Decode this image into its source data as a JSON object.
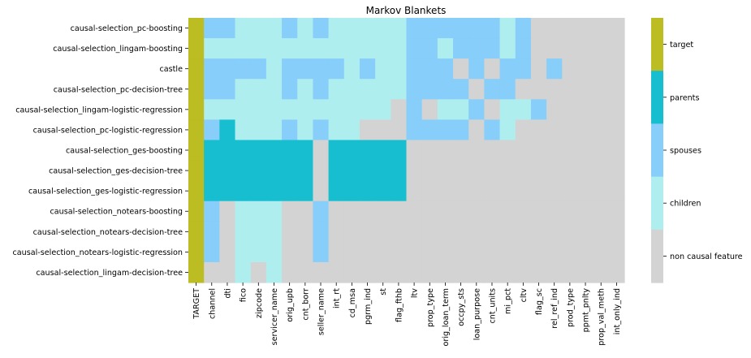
{
  "chart_data": {
    "type": "heatmap",
    "title": "Markov Blankets",
    "rows": [
      "causal-selection_pc-boosting",
      "causal-selection_lingam-boosting",
      "castle",
      "causal-selection_pc-decision-tree",
      "causal-selection_lingam-logistic-regression",
      "causal-selection_pc-logistic-regression",
      "causal-selection_ges-boosting",
      "causal-selection_ges-decision-tree",
      "causal-selection_ges-logistic-regression",
      "causal-selection_notears-boosting",
      "causal-selection_notears-decision-tree",
      "causal-selection_notears-logistic-regression",
      "causal-selection_lingam-decision-tree"
    ],
    "columns": [
      "TARGET",
      "channel",
      "dti",
      "fico",
      "zipcode",
      "servicer_name",
      "orig_upb",
      "cnt_borr",
      "seller_name",
      "int_rt",
      "cd_msa",
      "pgrm_ind",
      "st",
      "flag_fthb",
      "ltv",
      "prop_type",
      "orig_loan_term",
      "occpy_sts",
      "loan_purpose",
      "cnt_units",
      "mi_pct",
      "cltv",
      "flag_sc",
      "rel_ref_ind",
      "prod_type",
      "ppmt_pnlty",
      "prop_val_meth",
      "int_only_ind"
    ],
    "categories": [
      "non causal feature",
      "children",
      "spouses",
      "parents",
      "target"
    ],
    "category_colors": [
      "#d3d3d3",
      "#afeeee",
      "#87cefa",
      "#17becf",
      "#bcbd22"
    ],
    "legend_order": [
      "target",
      "parents",
      "spouses",
      "children",
      "non causal feature"
    ],
    "values": [
      [
        4,
        2,
        2,
        1,
        1,
        1,
        2,
        1,
        2,
        1,
        1,
        1,
        1,
        1,
        2,
        2,
        2,
        2,
        2,
        2,
        1,
        2,
        0,
        0,
        0,
        0,
        0,
        0
      ],
      [
        4,
        1,
        1,
        1,
        1,
        1,
        1,
        1,
        1,
        1,
        1,
        1,
        1,
        1,
        2,
        2,
        1,
        2,
        2,
        2,
        1,
        2,
        0,
        0,
        0,
        0,
        0,
        0
      ],
      [
        4,
        2,
        2,
        2,
        2,
        1,
        2,
        2,
        2,
        2,
        1,
        2,
        1,
        1,
        2,
        2,
        2,
        0,
        2,
        0,
        2,
        2,
        0,
        2,
        0,
        0,
        0,
        0
      ],
      [
        4,
        2,
        2,
        1,
        1,
        1,
        2,
        1,
        2,
        1,
        1,
        1,
        1,
        1,
        2,
        2,
        2,
        2,
        0,
        2,
        2,
        0,
        0,
        0,
        0,
        0,
        0,
        0
      ],
      [
        4,
        1,
        1,
        1,
        1,
        1,
        1,
        1,
        1,
        1,
        1,
        1,
        1,
        0,
        2,
        0,
        1,
        1,
        2,
        0,
        1,
        1,
        2,
        0,
        0,
        0,
        0,
        0
      ],
      [
        4,
        2,
        3,
        1,
        1,
        1,
        2,
        1,
        2,
        1,
        1,
        0,
        0,
        0,
        2,
        2,
        2,
        2,
        0,
        2,
        1,
        0,
        0,
        0,
        0,
        0,
        0,
        0
      ],
      [
        4,
        3,
        3,
        3,
        3,
        3,
        3,
        3,
        0,
        3,
        3,
        3,
        3,
        3,
        0,
        0,
        0,
        0,
        0,
        0,
        0,
        0,
        0,
        0,
        0,
        0,
        0,
        0
      ],
      [
        4,
        3,
        3,
        3,
        3,
        3,
        3,
        3,
        0,
        3,
        3,
        3,
        3,
        3,
        0,
        0,
        0,
        0,
        0,
        0,
        0,
        0,
        0,
        0,
        0,
        0,
        0,
        0
      ],
      [
        4,
        3,
        3,
        3,
        3,
        3,
        3,
        3,
        0,
        3,
        3,
        3,
        3,
        3,
        0,
        0,
        0,
        0,
        0,
        0,
        0,
        0,
        0,
        0,
        0,
        0,
        0,
        0
      ],
      [
        4,
        2,
        0,
        1,
        1,
        1,
        0,
        0,
        2,
        0,
        0,
        0,
        0,
        0,
        0,
        0,
        0,
        0,
        0,
        0,
        0,
        0,
        0,
        0,
        0,
        0,
        0,
        0
      ],
      [
        4,
        2,
        0,
        1,
        1,
        1,
        0,
        0,
        2,
        0,
        0,
        0,
        0,
        0,
        0,
        0,
        0,
        0,
        0,
        0,
        0,
        0,
        0,
        0,
        0,
        0,
        0,
        0
      ],
      [
        4,
        2,
        0,
        1,
        1,
        1,
        0,
        0,
        2,
        0,
        0,
        0,
        0,
        0,
        0,
        0,
        0,
        0,
        0,
        0,
        0,
        0,
        0,
        0,
        0,
        0,
        0,
        0
      ],
      [
        4,
        0,
        0,
        1,
        0,
        1,
        0,
        0,
        0,
        0,
        0,
        0,
        0,
        0,
        0,
        0,
        0,
        0,
        0,
        0,
        0,
        0,
        0,
        0,
        0,
        0,
        0,
        0
      ]
    ],
    "colorbar": "right",
    "grid": false
  }
}
